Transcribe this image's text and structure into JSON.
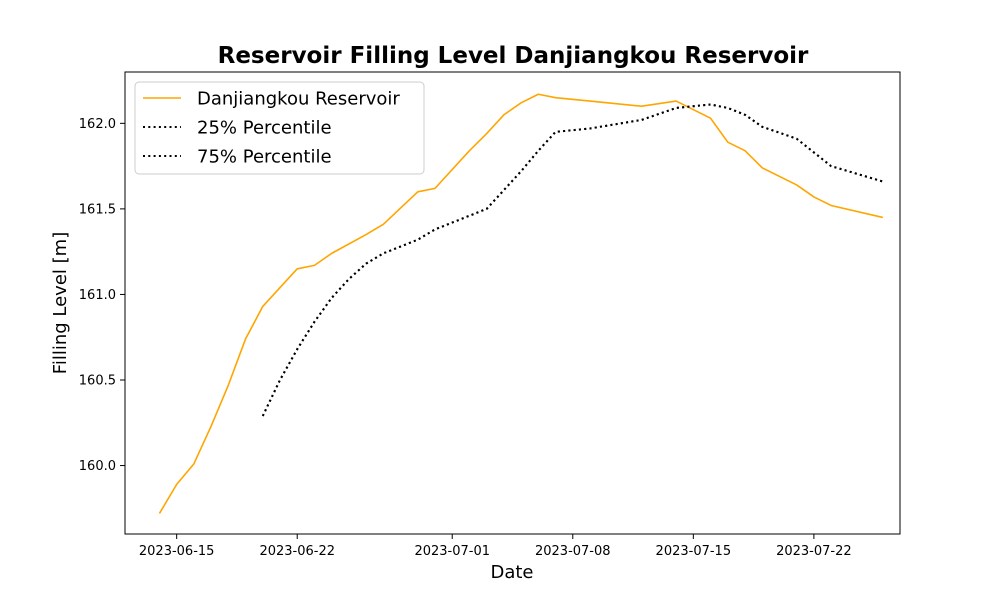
{
  "chart_data": {
    "type": "line",
    "title": "Reservoir Filling Level Danjiangkou Reservoir",
    "xlabel": "Date",
    "ylabel": "Filling Level [m]",
    "x_ticks": [
      "2023-06-15",
      "2023-06-22",
      "2023-07-01",
      "2023-07-08",
      "2023-07-15",
      "2023-07-22"
    ],
    "y_ticks": [
      "160.0",
      "160.5",
      "161.0",
      "161.5",
      "162.0"
    ],
    "xlim": [
      "2023-06-12",
      "2023-07-27"
    ],
    "ylim": [
      159.6,
      162.3
    ],
    "grid": false,
    "legend_position": "top-left",
    "series": [
      {
        "name": "Danjiangkou Reservoir",
        "color": "#FFA500",
        "style": "solid",
        "points": [
          [
            "2023-06-14",
            159.72
          ],
          [
            "2023-06-15",
            159.89
          ],
          [
            "2023-06-16",
            160.01
          ],
          [
            "2023-06-17",
            160.23
          ],
          [
            "2023-06-18",
            160.47
          ],
          [
            "2023-06-19",
            160.74
          ],
          [
            "2023-06-20",
            160.93
          ],
          [
            "2023-06-21",
            161.04
          ],
          [
            "2023-06-22",
            161.15
          ],
          [
            "2023-06-23",
            161.17
          ],
          [
            "2023-06-24",
            161.24
          ],
          [
            "2023-06-26",
            161.35
          ],
          [
            "2023-06-27",
            161.41
          ],
          [
            "2023-06-29",
            161.6
          ],
          [
            "2023-06-30",
            161.62
          ],
          [
            "2023-07-02",
            161.84
          ],
          [
            "2023-07-03",
            161.94
          ],
          [
            "2023-07-04",
            162.05
          ],
          [
            "2023-07-05",
            162.12
          ],
          [
            "2023-07-06",
            162.17
          ],
          [
            "2023-07-07",
            162.15
          ],
          [
            "2023-07-09",
            162.13
          ],
          [
            "2023-07-12",
            162.1
          ],
          [
            "2023-07-14",
            162.13
          ],
          [
            "2023-07-16",
            162.03
          ],
          [
            "2023-07-17",
            161.89
          ],
          [
            "2023-07-18",
            161.84
          ],
          [
            "2023-07-19",
            161.74
          ],
          [
            "2023-07-21",
            161.64
          ],
          [
            "2023-07-22",
            161.57
          ],
          [
            "2023-07-23",
            161.52
          ],
          [
            "2023-07-26",
            161.45
          ]
        ]
      },
      {
        "name": "25% Percentile",
        "color": "#000000",
        "style": "dotted",
        "points": [
          [
            "2023-06-20",
            160.29
          ],
          [
            "2023-06-21",
            160.5
          ],
          [
            "2023-06-22",
            160.68
          ],
          [
            "2023-06-23",
            160.84
          ],
          [
            "2023-06-24",
            160.98
          ],
          [
            "2023-06-25",
            161.09
          ],
          [
            "2023-06-26",
            161.18
          ],
          [
            "2023-06-27",
            161.24
          ],
          [
            "2023-06-28",
            161.28
          ],
          [
            "2023-06-29",
            161.32
          ],
          [
            "2023-06-30",
            161.38
          ],
          [
            "2023-07-01",
            161.42
          ],
          [
            "2023-07-02",
            161.46
          ],
          [
            "2023-07-03",
            161.5
          ],
          [
            "2023-07-04",
            161.61
          ],
          [
            "2023-07-05",
            161.72
          ],
          [
            "2023-07-06",
            161.84
          ],
          [
            "2023-07-07",
            161.95
          ],
          [
            "2023-07-09",
            161.97
          ],
          [
            "2023-07-12",
            162.02
          ],
          [
            "2023-07-14",
            162.09
          ],
          [
            "2023-07-16",
            162.11
          ],
          [
            "2023-07-17",
            162.09
          ],
          [
            "2023-07-18",
            162.05
          ],
          [
            "2023-07-19",
            161.98
          ],
          [
            "2023-07-21",
            161.91
          ],
          [
            "2023-07-22",
            161.83
          ],
          [
            "2023-07-23",
            161.75
          ],
          [
            "2023-07-25",
            161.69
          ],
          [
            "2023-07-26",
            161.66
          ]
        ]
      },
      {
        "name": "75% Percentile",
        "color": "#000000",
        "style": "dotted",
        "points": [
          [
            "2023-06-20",
            160.29
          ],
          [
            "2023-06-21",
            160.5
          ],
          [
            "2023-06-22",
            160.68
          ],
          [
            "2023-06-23",
            160.84
          ],
          [
            "2023-06-24",
            160.98
          ],
          [
            "2023-06-25",
            161.09
          ],
          [
            "2023-06-26",
            161.18
          ],
          [
            "2023-06-27",
            161.24
          ],
          [
            "2023-06-28",
            161.28
          ],
          [
            "2023-06-29",
            161.32
          ],
          [
            "2023-06-30",
            161.38
          ],
          [
            "2023-07-01",
            161.42
          ],
          [
            "2023-07-02",
            161.46
          ],
          [
            "2023-07-03",
            161.5
          ],
          [
            "2023-07-04",
            161.61
          ],
          [
            "2023-07-05",
            161.72
          ],
          [
            "2023-07-06",
            161.84
          ],
          [
            "2023-07-07",
            161.95
          ],
          [
            "2023-07-09",
            161.97
          ],
          [
            "2023-07-12",
            162.02
          ],
          [
            "2023-07-14",
            162.09
          ],
          [
            "2023-07-16",
            162.11
          ],
          [
            "2023-07-17",
            162.09
          ],
          [
            "2023-07-18",
            162.05
          ],
          [
            "2023-07-19",
            161.98
          ],
          [
            "2023-07-21",
            161.91
          ],
          [
            "2023-07-22",
            161.83
          ],
          [
            "2023-07-23",
            161.75
          ],
          [
            "2023-07-25",
            161.69
          ],
          [
            "2023-07-26",
            161.66
          ]
        ]
      }
    ]
  }
}
